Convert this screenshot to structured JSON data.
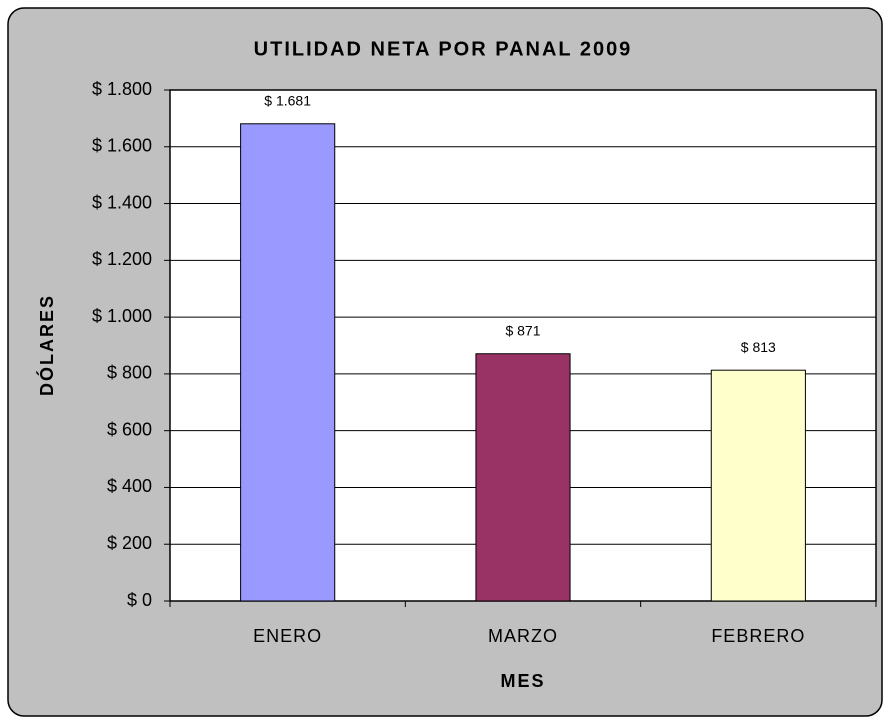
{
  "chart_data": {
    "type": "bar",
    "title": "UTILIDAD NETA POR PANAL 2009",
    "x_label": "MES",
    "y_label": "DÓLARES",
    "categories": [
      "ENERO",
      "MARZO",
      "FEBRERO"
    ],
    "values": [
      1681,
      871,
      813
    ],
    "value_labels": [
      "$ 1.681",
      "$ 871",
      "$ 813"
    ],
    "colors": [
      "#9999ff",
      "#993366",
      "#ffffcc"
    ],
    "ylim": [
      0,
      1800
    ],
    "yticks": [
      {
        "value": 0,
        "label": "$ 0"
      },
      {
        "value": 200,
        "label": "$ 200"
      },
      {
        "value": 400,
        "label": "$ 400"
      },
      {
        "value": 600,
        "label": "$ 600"
      },
      {
        "value": 800,
        "label": "$ 800"
      },
      {
        "value": 1000,
        "label": "$ 1.000"
      },
      {
        "value": 1200,
        "label": "$ 1.200"
      },
      {
        "value": 1400,
        "label": "$ 1.400"
      },
      {
        "value": 1600,
        "label": "$ 1.600"
      },
      {
        "value": 1800,
        "label": "$ 1.800"
      }
    ],
    "grid": true
  }
}
